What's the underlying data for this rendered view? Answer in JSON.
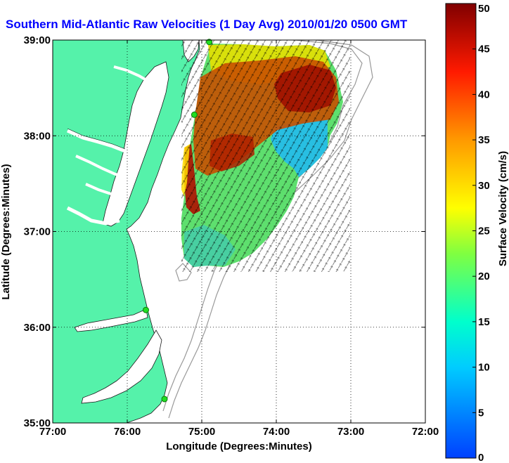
{
  "chart_data": {
    "type": "heatmap",
    "title": "Southern Mid-Atlantic Raw Velocities (1 Day Avg) 2010/01/20 0500 GMT",
    "xlabel": "Longitude (Degrees:Minutes)",
    "ylabel": "Latitude (Degrees:Minutes)",
    "x_ticks": [
      "77:00",
      "76:00",
      "75:00",
      "74:00",
      "73:00",
      "72:00"
    ],
    "y_ticks": [
      "39:00",
      "38:00",
      "37:00",
      "36:00",
      "35:00"
    ],
    "xlim": [
      -77,
      -72
    ],
    "ylim": [
      35,
      39
    ],
    "grid": "dotted",
    "colorbar": {
      "label": "Surface Velocity (cm/s)",
      "ticks": [
        "50",
        "45",
        "40",
        "35",
        "30",
        "25",
        "20",
        "15",
        "10",
        "5",
        "0"
      ],
      "range": [
        0,
        50
      ]
    },
    "colors": {
      "land": "#55f2aa",
      "bathymetry": "#999999",
      "title": "#0000ff",
      "station": "#22dd22"
    },
    "velocity_regions": [
      {
        "name": "northeast core",
        "value": 47
      },
      {
        "name": "central core",
        "value": 45
      },
      {
        "name": "western shelf edge",
        "value": 45
      },
      {
        "name": "eastern offshore band",
        "value": 12
      },
      {
        "name": "northern band",
        "value": 28
      },
      {
        "name": "southern area",
        "value": 22
      }
    ],
    "stations": [
      {
        "lon": -74.9,
        "lat": 38.98
      },
      {
        "lon": -75.1,
        "lat": 38.22
      },
      {
        "lon": -75.75,
        "lat": 36.18
      },
      {
        "lon": -75.5,
        "lat": 35.25
      }
    ]
  }
}
